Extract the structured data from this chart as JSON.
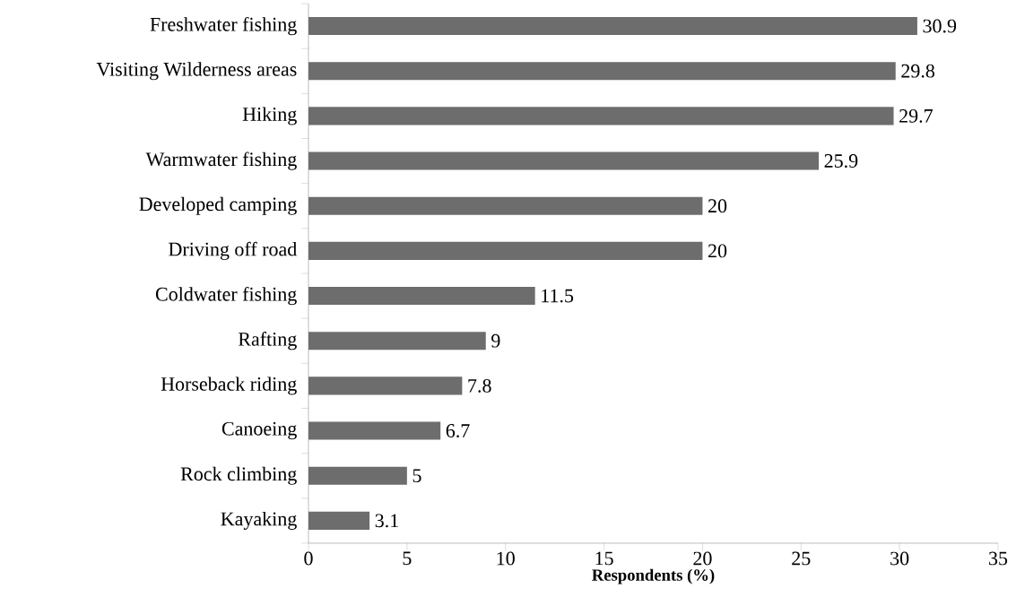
{
  "chart_data": {
    "type": "bar",
    "orientation": "horizontal",
    "xlabel": "Respondents (%)",
    "categories": [
      "Freshwater fishing",
      "Visiting Wilderness areas",
      "Hiking",
      "Warmwater fishing",
      "Developed camping",
      "Driving off road",
      "Coldwater fishing",
      "Rafting",
      "Horseback riding",
      "Canoeing",
      "Rock climbing",
      "Kayaking"
    ],
    "values": [
      30.9,
      29.8,
      29.7,
      25.9,
      20,
      20,
      11.5,
      9,
      7.8,
      6.7,
      5,
      3.1
    ],
    "color": "#6d6d6d",
    "xlim": [
      0,
      35
    ],
    "xticks": [
      0,
      5,
      10,
      15,
      20,
      25,
      30,
      35
    ],
    "data_labels": true
  }
}
